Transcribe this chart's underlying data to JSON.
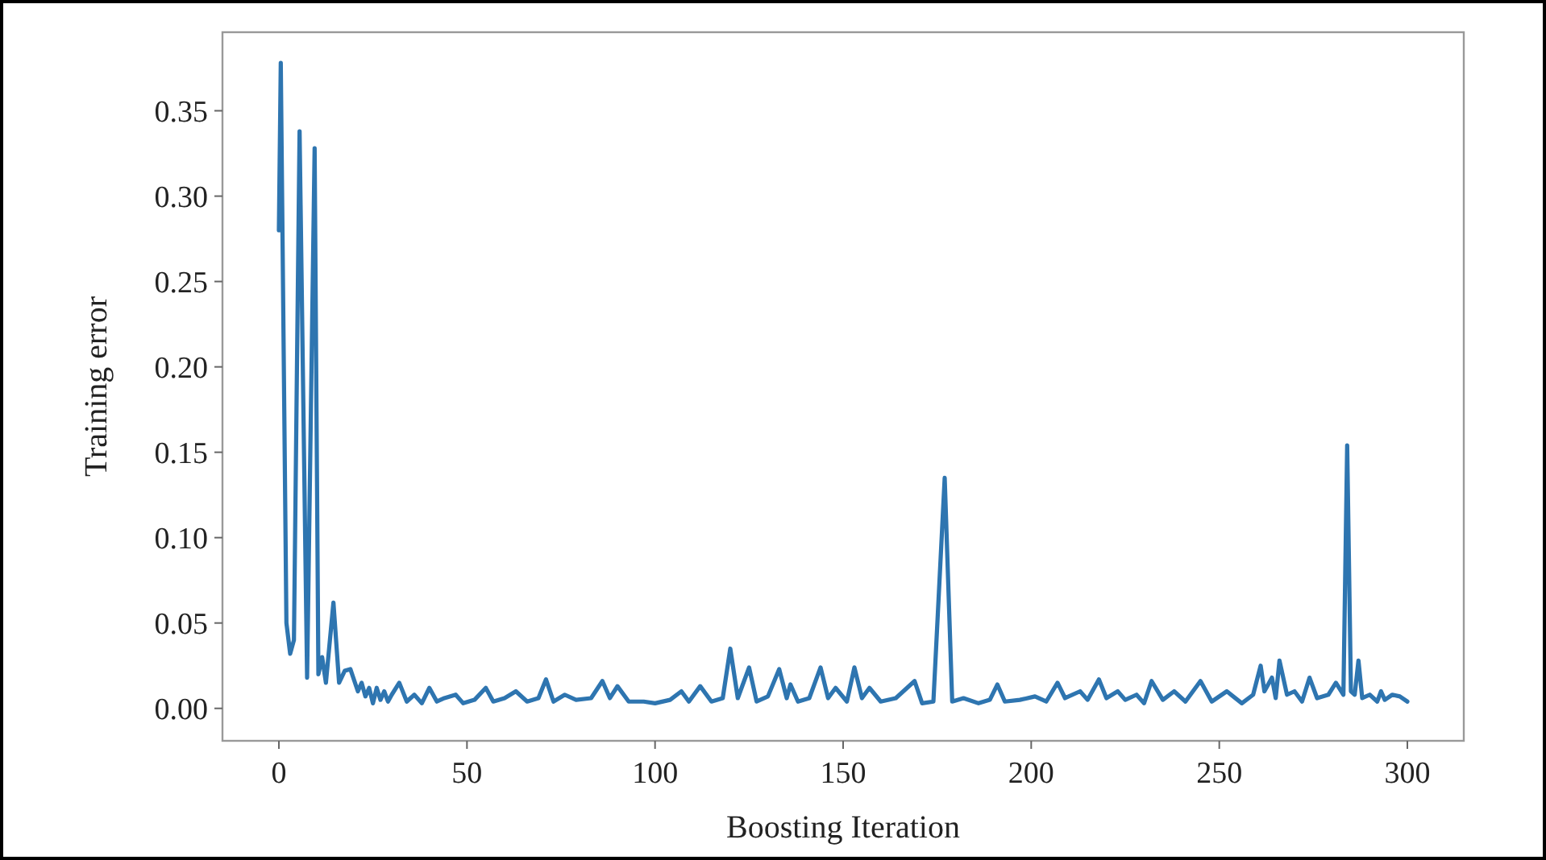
{
  "chart_data": {
    "type": "line",
    "xlabel": "Boosting Iteration",
    "ylabel": "Training error",
    "xlim": [
      -15,
      315
    ],
    "ylim": [
      -0.019,
      0.396
    ],
    "xticks": [
      0,
      50,
      100,
      150,
      200,
      250,
      300
    ],
    "yticks": [
      {
        "value": 0,
        "label": "0.00"
      },
      {
        "value": 0.05,
        "label": "0.05"
      },
      {
        "value": 0.1,
        "label": "0.10"
      },
      {
        "value": 0.15,
        "label": "0.15"
      },
      {
        "value": 0.2,
        "label": "0.20"
      },
      {
        "value": 0.25,
        "label": "0.25"
      },
      {
        "value": 0.3,
        "label": "0.30"
      },
      {
        "value": 0.35,
        "label": "0.35"
      }
    ],
    "grid": false,
    "line_style": "solid",
    "marker": "none",
    "series": [
      {
        "color": "#2e75b0",
        "x": [
          0,
          0.5,
          2,
          3,
          4,
          5.5,
          7.5,
          9.5,
          10.5,
          11.5,
          12.5,
          14.5,
          16,
          17.5,
          19,
          21,
          22,
          23,
          24,
          25,
          26,
          27,
          28,
          29,
          30,
          32,
          34,
          36,
          38,
          40,
          42,
          44,
          47,
          49,
          52,
          55,
          57,
          60,
          63,
          66,
          69,
          71,
          73,
          76,
          79,
          83,
          86,
          88,
          90,
          93,
          97,
          100,
          104,
          107,
          109,
          112,
          115,
          118,
          120,
          122,
          125,
          127,
          130,
          133,
          135,
          136,
          138,
          141,
          144,
          146,
          148,
          151,
          153,
          155,
          157,
          160,
          164,
          167,
          169,
          171,
          174,
          177,
          179,
          182,
          186,
          189,
          191,
          193,
          197,
          201,
          204,
          207,
          209,
          213,
          215,
          218,
          220,
          223,
          225,
          228,
          230,
          232,
          235,
          238,
          241,
          245,
          248,
          252,
          256,
          259,
          261,
          262,
          264,
          265,
          266,
          268,
          270,
          272,
          274,
          276,
          279,
          281,
          283,
          284,
          285,
          286,
          287,
          288,
          290,
          292,
          293,
          294,
          296,
          298,
          300
        ],
        "values": [
          0.28,
          0.378,
          0.05,
          0.032,
          0.04,
          0.338,
          0.018,
          0.328,
          0.02,
          0.03,
          0.015,
          0.062,
          0.015,
          0.022,
          0.023,
          0.01,
          0.015,
          0.007,
          0.012,
          0.003,
          0.012,
          0.005,
          0.01,
          0.004,
          0.008,
          0.015,
          0.004,
          0.008,
          0.003,
          0.012,
          0.004,
          0.006,
          0.008,
          0.003,
          0.005,
          0.012,
          0.004,
          0.006,
          0.01,
          0.004,
          0.006,
          0.017,
          0.004,
          0.008,
          0.005,
          0.006,
          0.016,
          0.006,
          0.013,
          0.004,
          0.004,
          0.003,
          0.005,
          0.01,
          0.004,
          0.013,
          0.004,
          0.006,
          0.035,
          0.006,
          0.024,
          0.004,
          0.007,
          0.023,
          0.006,
          0.014,
          0.004,
          0.006,
          0.024,
          0.006,
          0.012,
          0.004,
          0.024,
          0.006,
          0.012,
          0.004,
          0.006,
          0.012,
          0.016,
          0.003,
          0.004,
          0.135,
          0.004,
          0.006,
          0.003,
          0.005,
          0.014,
          0.004,
          0.005,
          0.007,
          0.004,
          0.015,
          0.006,
          0.01,
          0.005,
          0.017,
          0.006,
          0.01,
          0.005,
          0.008,
          0.003,
          0.016,
          0.005,
          0.01,
          0.004,
          0.016,
          0.004,
          0.01,
          0.003,
          0.008,
          0.025,
          0.01,
          0.018,
          0.006,
          0.028,
          0.008,
          0.01,
          0.004,
          0.018,
          0.006,
          0.008,
          0.015,
          0.008,
          0.154,
          0.01,
          0.008,
          0.028,
          0.006,
          0.008,
          0.004,
          0.01,
          0.005,
          0.008,
          0.007,
          0.004
        ]
      }
    ]
  }
}
